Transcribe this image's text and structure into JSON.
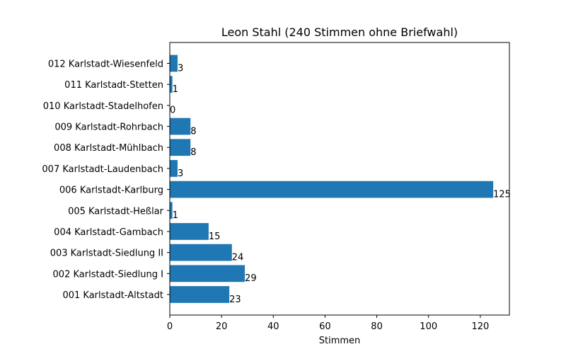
{
  "chart_data": {
    "type": "bar",
    "orientation": "horizontal",
    "title": "Leon Stahl (240 Stimmen ohne Briefwahl)",
    "xlabel": "Stimmen",
    "ylabel": "",
    "xlim": [
      0,
      131.25
    ],
    "xticks": [
      0,
      20,
      40,
      60,
      80,
      100,
      120
    ],
    "grid": false,
    "bar_color": "#1f77b4",
    "categories": [
      "001 Karlstadt-Altstadt",
      "002 Karlstadt-Siedlung I",
      "003 Karlstadt-Siedlung II",
      "004 Karlstadt-Gambach",
      "005 Karlstadt-Heßlar",
      "006 Karlstadt-Karlburg",
      "007 Karlstadt-Laudenbach",
      "008 Karlstadt-Mühlbach",
      "009 Karlstadt-Rohrbach",
      "010 Karlstadt-Stadelhofen",
      "011 Karlstadt-Stetten",
      "012 Karlstadt-Wiesenfeld"
    ],
    "values": [
      23,
      29,
      24,
      15,
      1,
      125,
      3,
      8,
      8,
      0,
      1,
      3
    ]
  }
}
